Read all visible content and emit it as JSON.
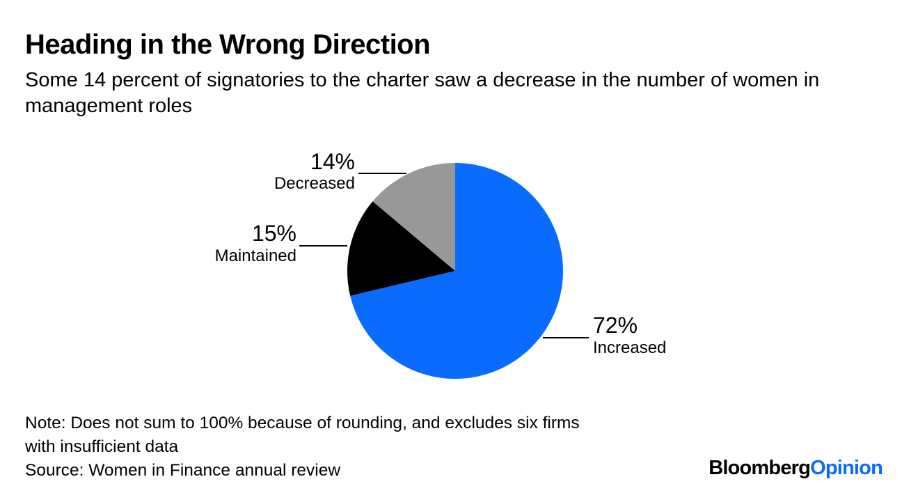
{
  "header": {
    "title": "Heading in the Wrong Direction",
    "subtitle": "Some 14 percent of signatories to the charter saw a decrease in the number of women in management roles"
  },
  "chart_data": {
    "type": "pie",
    "title": "Heading in the Wrong Direction",
    "start_angle_deg": 0,
    "direction": "clockwise",
    "slices": [
      {
        "label": "Increased",
        "value": 72,
        "value_label": "72%",
        "color": "#0a6bff"
      },
      {
        "label": "Maintained",
        "value": 15,
        "value_label": "15%",
        "color": "#000000"
      },
      {
        "label": "Decreased",
        "value": 14,
        "value_label": "14%",
        "color": "#989898"
      }
    ]
  },
  "footer": {
    "note_line1": "Note: Does not sum to 100% because of rounding, and excludes six firms",
    "note_line2": "with insufficient data",
    "source": "Source: Women in Finance annual review"
  },
  "brand": {
    "part1": "Bloomberg",
    "part2": "Opinion",
    "accent_color": "#0a6bff"
  }
}
